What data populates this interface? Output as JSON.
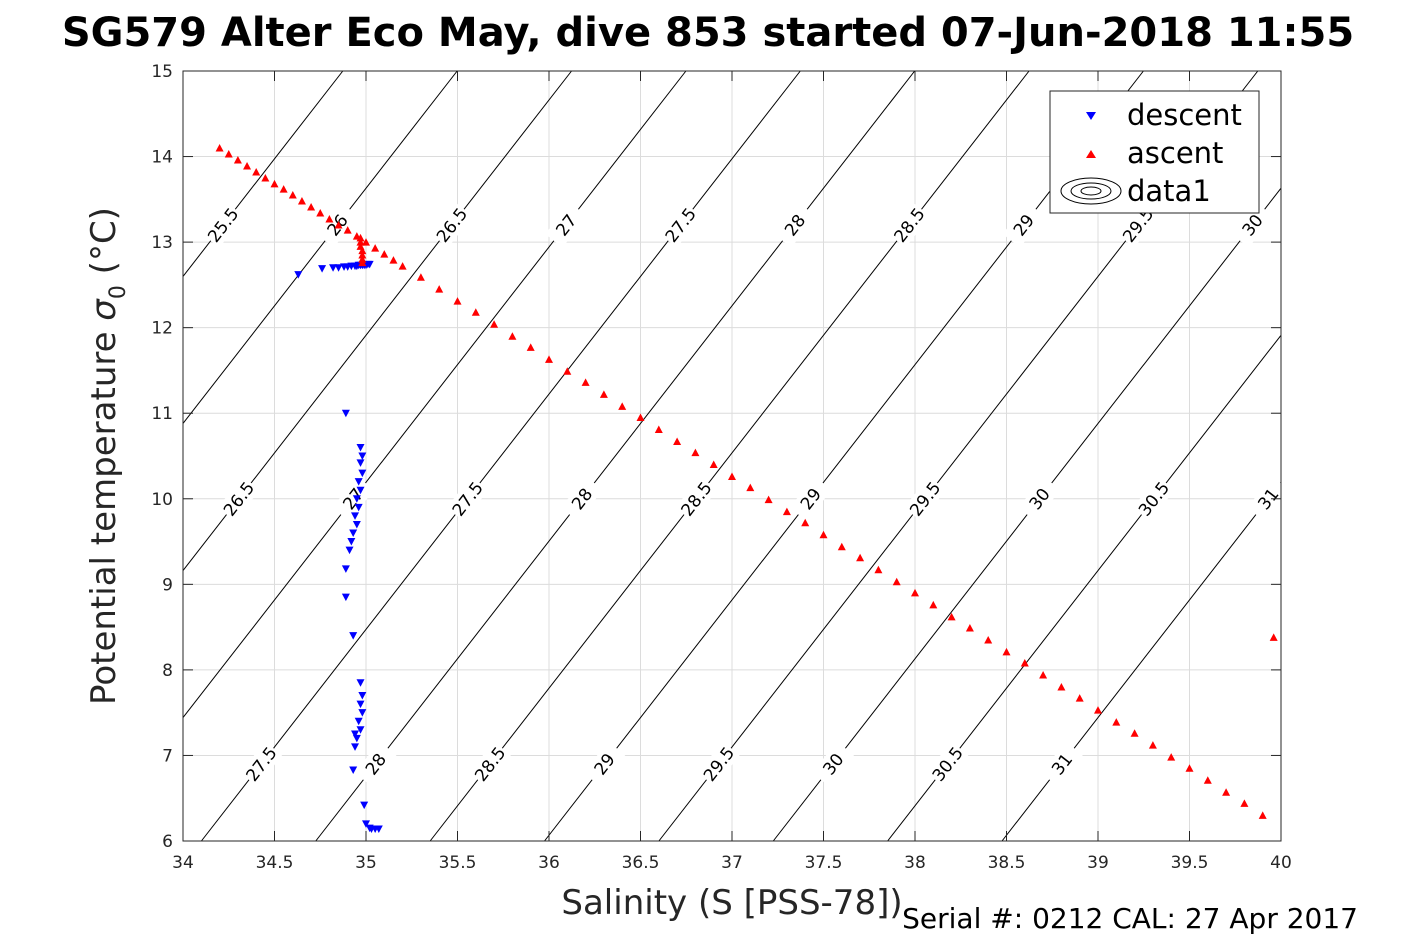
{
  "chart_data": {
    "type": "scatter",
    "title": "SG579 Alter Eco May, dive 853 started 07-Jun-2018 11:55",
    "xlabel": "Salinity (S [PSS-78])",
    "ylabel_main": "Potential temperature ",
    "ylabel_sym": "σ",
    "ylabel_sub": "0",
    "ylabel_unit": " (°C)",
    "footer": "Serial #: 0212  CAL: 27 Apr 2017",
    "xlim": [
      34,
      40
    ],
    "ylim": [
      6,
      15
    ],
    "x_ticks": [
      34,
      34.5,
      35,
      35.5,
      36,
      36.5,
      37,
      37.5,
      38,
      38.5,
      39,
      39.5,
      40
    ],
    "x_tick_labels": [
      "34",
      "34.5",
      "35",
      "35.5",
      "36",
      "36.5",
      "37",
      "37.5",
      "38",
      "38.5",
      "39",
      "39.5",
      "40"
    ],
    "y_ticks": [
      6,
      7,
      8,
      9,
      10,
      11,
      12,
      13,
      14,
      15
    ],
    "y_tick_labels": [
      "6",
      "7",
      "8",
      "9",
      "10",
      "11",
      "12",
      "13",
      "14",
      "15"
    ],
    "grid": true,
    "legend_position": "top-right",
    "legend": [
      "descent",
      "ascent",
      "data1"
    ],
    "colors": {
      "descent": "#0000ff",
      "ascent": "#ff0000",
      "contour": "#000000",
      "grid": "#dcdcdc"
    },
    "contour_levels": [
      "25.5",
      "26",
      "26.5",
      "27",
      "27.5",
      "28",
      "28.5",
      "29",
      "29.5",
      "30",
      "30.5",
      "31"
    ],
    "series": [
      {
        "name": "descent",
        "marker": "triangle-down",
        "x": [
          34.63,
          34.76,
          34.82,
          34.85,
          34.88,
          34.9,
          34.92,
          34.94,
          34.95,
          34.96,
          34.97,
          34.98,
          34.99,
          35.0,
          35.01,
          35.02,
          34.89,
          34.97,
          34.98,
          34.97,
          34.98,
          34.96,
          34.97,
          34.95,
          34.96,
          34.94,
          34.95,
          34.93,
          34.92,
          34.91,
          34.89,
          34.89,
          34.93,
          34.97,
          34.98,
          34.97,
          34.98,
          34.96,
          34.97,
          34.95,
          34.94,
          34.93,
          34.94,
          34.99,
          35.0,
          35.02,
          35.03,
          35.05,
          35.07
        ],
        "y": [
          12.62,
          12.69,
          12.7,
          12.7,
          12.71,
          12.71,
          12.72,
          12.72,
          12.72,
          12.73,
          12.73,
          12.73,
          12.73,
          12.73,
          12.74,
          12.74,
          11.0,
          10.6,
          10.5,
          10.42,
          10.3,
          10.2,
          10.1,
          10.0,
          9.9,
          9.8,
          9.7,
          9.6,
          9.5,
          9.4,
          9.18,
          8.85,
          8.4,
          7.85,
          7.7,
          7.6,
          7.5,
          7.4,
          7.3,
          7.2,
          7.1,
          6.83,
          7.25,
          6.42,
          6.2,
          6.15,
          6.14,
          6.14,
          6.14
        ]
      },
      {
        "name": "ascent",
        "marker": "triangle-up",
        "x": [
          34.2,
          34.25,
          34.3,
          34.35,
          34.4,
          34.45,
          34.5,
          34.55,
          34.6,
          34.65,
          34.7,
          34.75,
          34.8,
          34.85,
          34.9,
          34.95,
          35.0,
          35.05,
          35.1,
          35.15,
          35.2,
          35.3,
          35.4,
          35.5,
          35.6,
          35.7,
          35.8,
          35.9,
          36.0,
          36.1,
          36.2,
          36.3,
          36.4,
          36.5,
          36.6,
          36.7,
          36.8,
          36.9,
          37.0,
          37.1,
          37.2,
          37.3,
          37.4,
          37.5,
          37.6,
          37.7,
          37.8,
          37.9,
          38.0,
          38.1,
          38.2,
          38.3,
          38.4,
          38.5,
          38.6,
          38.7,
          38.8,
          38.9,
          39.0,
          39.1,
          39.2,
          39.3,
          39.4,
          39.5,
          39.6,
          39.7,
          39.8,
          39.9,
          39.96,
          34.97,
          34.97,
          34.97,
          34.98,
          34.98,
          34.98,
          34.98
        ],
        "y": [
          14.1,
          14.03,
          13.96,
          13.89,
          13.82,
          13.75,
          13.68,
          13.62,
          13.55,
          13.48,
          13.41,
          13.34,
          13.27,
          13.2,
          13.14,
          13.07,
          13.0,
          12.93,
          12.86,
          12.79,
          12.72,
          12.59,
          12.45,
          12.31,
          12.18,
          12.04,
          11.9,
          11.77,
          11.63,
          11.49,
          11.36,
          11.22,
          11.08,
          10.95,
          10.81,
          10.67,
          10.54,
          10.4,
          10.26,
          10.13,
          9.99,
          9.85,
          9.72,
          9.58,
          9.44,
          9.31,
          9.17,
          9.03,
          8.9,
          8.76,
          8.62,
          8.49,
          8.35,
          8.21,
          8.08,
          7.94,
          7.8,
          7.67,
          7.53,
          7.39,
          7.26,
          7.12,
          6.98,
          6.85,
          6.71,
          6.57,
          6.44,
          6.3,
          8.38,
          13.05,
          13.0,
          12.95,
          12.9,
          12.85,
          12.8,
          12.76
        ]
      }
    ]
  }
}
